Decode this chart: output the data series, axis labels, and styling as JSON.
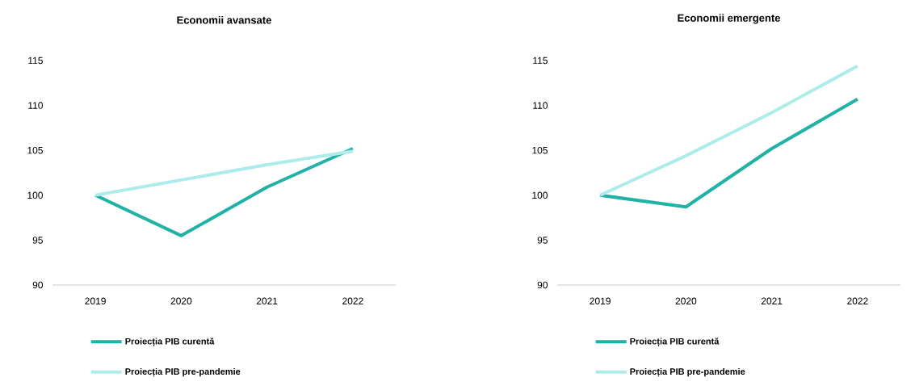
{
  "chart_data": [
    {
      "type": "line",
      "title": "Economii avansate",
      "categories": [
        "2019",
        "2020",
        "2021",
        "2022"
      ],
      "series": [
        {
          "name": "Proiecția PIB curentă",
          "color": "#20b2a6",
          "values": [
            100,
            95.5,
            100.9,
            105.2
          ]
        },
        {
          "name": "Proiecția PIB pre-pandemie",
          "color": "#aeeceb",
          "values": [
            100,
            101.7,
            103.4,
            104.9
          ]
        }
      ],
      "ylim": [
        90,
        115
      ],
      "yticks": [
        90,
        95,
        100,
        105,
        110,
        115
      ],
      "legend": "bottom"
    },
    {
      "type": "line",
      "title": "Economii emergente",
      "categories": [
        "2019",
        "2020",
        "2021",
        "2022"
      ],
      "series": [
        {
          "name": "Proiecția PIB curentă",
          "color": "#20b2a6",
          "values": [
            100,
            98.7,
            105.2,
            110.7
          ]
        },
        {
          "name": "Proiecția PIB pre-pandemie",
          "color": "#aeeceb",
          "values": [
            100,
            104.4,
            109.2,
            114.4
          ]
        }
      ],
      "ylim": [
        90,
        115
      ],
      "yticks": [
        90,
        95,
        100,
        105,
        110,
        115
      ],
      "legend": "bottom"
    }
  ]
}
